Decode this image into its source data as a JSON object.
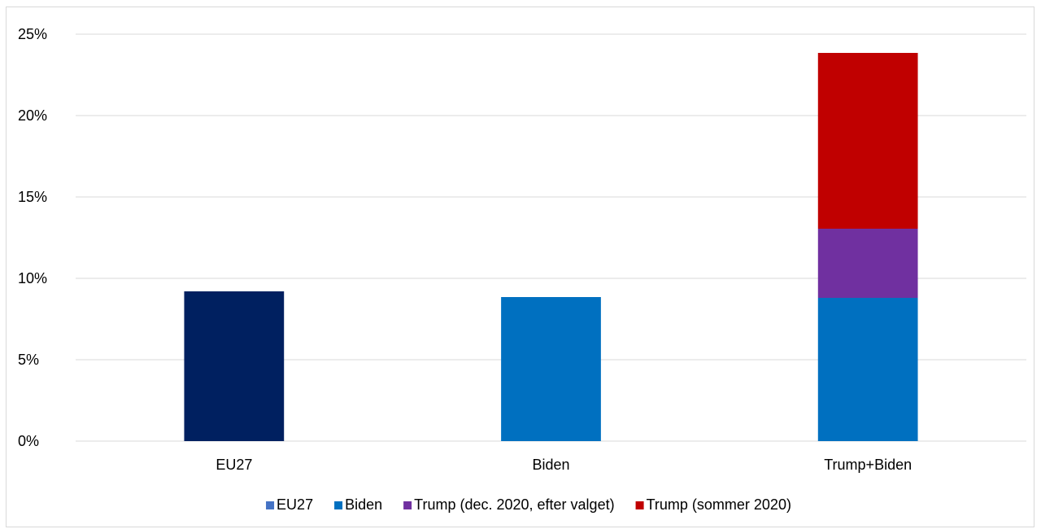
{
  "chart_data": {
    "type": "bar",
    "stacked": true,
    "categories": [
      "EU27",
      "Biden",
      "Trump+Biden"
    ],
    "series": [
      {
        "name": "EU27",
        "legend_color": "#4472C4",
        "color": "#002060",
        "values": [
          9.2,
          0,
          0
        ]
      },
      {
        "name": "Biden",
        "color": "#0070C0",
        "values": [
          0,
          8.85,
          8.8
        ]
      },
      {
        "name": "Trump (dec. 2020, efter valget)",
        "color": "#7030A0",
        "values": [
          0,
          0,
          4.25
        ]
      },
      {
        "name": "Trump (sommer 2020)",
        "color": "#C00000",
        "values": [
          0,
          0,
          10.8
        ]
      }
    ],
    "ylim": [
      0,
      25
    ],
    "yticks": [
      0,
      5,
      10,
      15,
      20,
      25
    ],
    "ytick_labels": [
      "0%",
      "5%",
      "10%",
      "15%",
      "20%",
      "25%"
    ],
    "grid": true,
    "legend_position": "bottom"
  }
}
